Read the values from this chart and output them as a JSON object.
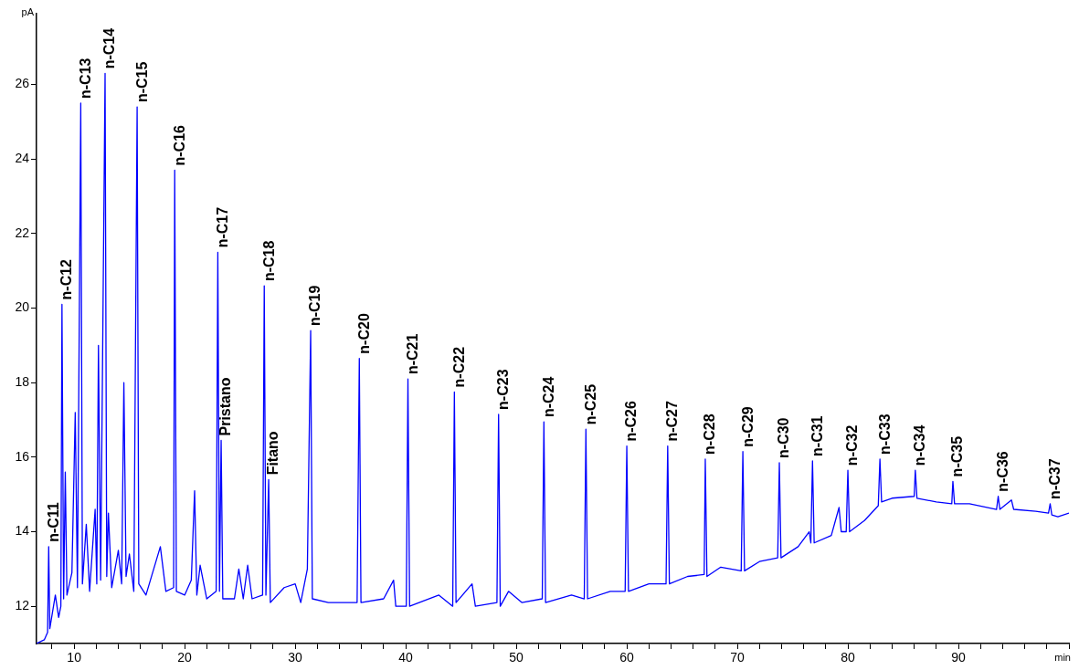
{
  "chart_data": {
    "type": "line",
    "xlabel": "min",
    "ylabel": "pA",
    "xlim": [
      6.6,
      100
    ],
    "ylim": [
      11,
      27.9
    ],
    "xticks": [
      {
        "value": 8,
        "label": null
      },
      10,
      {
        "value": 12,
        "label": null
      },
      {
        "value": 14,
        "label": null
      },
      {
        "value": 16,
        "label": null
      },
      {
        "value": 18,
        "label": null
      },
      20,
      {
        "value": 22,
        "label": null
      },
      {
        "value": 24,
        "label": null
      },
      {
        "value": 26,
        "label": null
      },
      {
        "value": 28,
        "label": null
      },
      30,
      {
        "value": 32,
        "label": null
      },
      {
        "value": 34,
        "label": null
      },
      {
        "value": 36,
        "label": null
      },
      {
        "value": 38,
        "label": null
      },
      40,
      {
        "value": 42,
        "label": null
      },
      {
        "value": 44,
        "label": null
      },
      {
        "value": 46,
        "label": null
      },
      {
        "value": 48,
        "label": null
      },
      50,
      {
        "value": 52,
        "label": null
      },
      {
        "value": 54,
        "label": null
      },
      {
        "value": 56,
        "label": null
      },
      {
        "value": 58,
        "label": null
      },
      60,
      {
        "value": 62,
        "label": null
      },
      {
        "value": 64,
        "label": null
      },
      {
        "value": 66,
        "label": null
      },
      {
        "value": 68,
        "label": null
      },
      70,
      {
        "value": 72,
        "label": null
      },
      {
        "value": 74,
        "label": null
      },
      {
        "value": 76,
        "label": null
      },
      {
        "value": 78,
        "label": null
      },
      80,
      {
        "value": 82,
        "label": null
      },
      {
        "value": 84,
        "label": null
      },
      {
        "value": 86,
        "label": null
      },
      {
        "value": 88,
        "label": null
      },
      90,
      {
        "value": 92,
        "label": null
      },
      {
        "value": 94,
        "label": null
      },
      {
        "value": 96,
        "label": null
      },
      {
        "value": 98,
        "label": null
      },
      {
        "value": 100,
        "label": null
      }
    ],
    "yticks": [
      12,
      14,
      16,
      18,
      20,
      22,
      24,
      26
    ],
    "grid": false,
    "legend": false,
    "marker": "none",
    "line_style": "solid",
    "series": [
      {
        "color": "#0000ff",
        "x": [
          6.6,
          7.3,
          7.6,
          7.7,
          7.8,
          8.3,
          8.6,
          8.8,
          8.9,
          9.05,
          9.2,
          9.35,
          9.8,
          10.1,
          10.3,
          10.6,
          10.75,
          11.1,
          11.4,
          11.9,
          12.05,
          12.2,
          12.4,
          12.8,
          12.95,
          13.1,
          13.4,
          14.0,
          14.3,
          14.5,
          14.7,
          15.0,
          15.4,
          15.7,
          15.85,
          16.5,
          17.5,
          17.8,
          18.3,
          19.0,
          19.1,
          19.25,
          20.0,
          20.6,
          20.9,
          21.1,
          21.4,
          22.0,
          22.85,
          23.0,
          23.15,
          23.3,
          23.45,
          24.5,
          24.9,
          25.3,
          25.7,
          26.1,
          27.05,
          27.2,
          27.35,
          27.6,
          27.75,
          29.0,
          30.0,
          30.5,
          31.1,
          31.4,
          31.55,
          33.0,
          35.6,
          35.8,
          35.95,
          38.0,
          38.9,
          39.1,
          40.05,
          40.2,
          40.35,
          43.0,
          44.25,
          44.4,
          44.55,
          46.0,
          46.3,
          48.25,
          48.4,
          48.55,
          49.3,
          50.5,
          52.35,
          52.5,
          52.65,
          55.0,
          56.15,
          56.3,
          56.45,
          58.5,
          59.85,
          60.0,
          60.15,
          62.0,
          63.55,
          63.7,
          63.85,
          65.5,
          67.0,
          67.1,
          67.25,
          68.5,
          70.35,
          70.5,
          70.65,
          72.0,
          73.65,
          73.8,
          73.95,
          75.5,
          76.5,
          76.65,
          76.8,
          76.95,
          78.5,
          79.2,
          79.4,
          79.85,
          80.0,
          80.15,
          81.5,
          82.75,
          82.9,
          83.05,
          84.0,
          86.0,
          86.1,
          86.25,
          88.0,
          89.4,
          89.5,
          89.65,
          91.0,
          93.45,
          93.6,
          93.75,
          94.8,
          95.0,
          97.0,
          98.15,
          98.3,
          98.45,
          99.0,
          100.0
        ],
        "values": [
          11.0,
          11.1,
          11.3,
          13.6,
          11.4,
          12.3,
          11.7,
          12.0,
          20.1,
          12.2,
          15.6,
          12.3,
          12.9,
          17.2,
          12.5,
          25.5,
          12.6,
          14.2,
          12.4,
          14.6,
          12.6,
          19.0,
          12.7,
          26.3,
          12.8,
          14.5,
          12.5,
          13.5,
          12.6,
          18.0,
          12.8,
          13.4,
          12.4,
          25.4,
          12.6,
          12.3,
          13.3,
          13.6,
          12.4,
          12.5,
          23.7,
          12.4,
          12.3,
          12.7,
          15.1,
          12.3,
          13.1,
          12.2,
          12.4,
          21.5,
          12.4,
          16.45,
          12.2,
          12.2,
          13.0,
          12.2,
          13.1,
          12.2,
          12.3,
          20.6,
          12.3,
          15.4,
          12.1,
          12.5,
          12.6,
          12.1,
          13.0,
          19.4,
          12.2,
          12.1,
          12.1,
          18.65,
          12.1,
          12.2,
          12.7,
          12.0,
          12.0,
          18.1,
          12.0,
          12.3,
          12.0,
          17.75,
          12.1,
          12.6,
          12.0,
          12.1,
          17.15,
          12.0,
          12.4,
          12.1,
          12.2,
          16.95,
          12.1,
          12.3,
          12.2,
          16.75,
          12.2,
          12.4,
          12.4,
          16.3,
          12.4,
          12.6,
          12.6,
          16.3,
          12.6,
          12.8,
          12.85,
          15.95,
          12.8,
          13.05,
          12.95,
          16.15,
          12.95,
          13.2,
          13.3,
          15.85,
          13.3,
          13.6,
          14.0,
          13.7,
          15.9,
          13.7,
          13.9,
          14.65,
          14.0,
          14.0,
          15.65,
          14.0,
          14.3,
          14.7,
          15.95,
          14.8,
          14.9,
          14.95,
          15.65,
          14.9,
          14.8,
          14.75,
          15.35,
          14.75,
          14.75,
          14.6,
          14.95,
          14.6,
          14.85,
          14.6,
          14.55,
          14.5,
          14.75,
          14.45,
          14.4,
          14.5
        ]
      }
    ],
    "annotations": [
      {
        "text": "n-C11",
        "x": 7.7,
        "y": 13.6
      },
      {
        "text": "n-C12",
        "x": 8.9,
        "y": 20.1
      },
      {
        "text": "n-C13",
        "x": 10.6,
        "y": 25.5
      },
      {
        "text": "n-C14",
        "x": 12.8,
        "y": 26.3
      },
      {
        "text": "n-C15",
        "x": 15.7,
        "y": 25.4
      },
      {
        "text": "n-C16",
        "x": 19.1,
        "y": 23.7
      },
      {
        "text": "n-C17",
        "x": 23.0,
        "y": 21.5
      },
      {
        "text": "Pristano",
        "x": 23.3,
        "y": 16.45
      },
      {
        "text": "n-C18",
        "x": 27.2,
        "y": 20.6
      },
      {
        "text": "Fitano",
        "x": 27.6,
        "y": 15.4
      },
      {
        "text": "n-C19",
        "x": 31.4,
        "y": 19.4
      },
      {
        "text": "n-C20",
        "x": 35.8,
        "y": 18.65
      },
      {
        "text": "n-C21",
        "x": 40.2,
        "y": 18.1
      },
      {
        "text": "n-C22",
        "x": 44.4,
        "y": 17.75
      },
      {
        "text": "n-C23",
        "x": 48.4,
        "y": 17.15
      },
      {
        "text": "n-C24",
        "x": 52.5,
        "y": 16.95
      },
      {
        "text": "n-C25",
        "x": 56.3,
        "y": 16.75
      },
      {
        "text": "n-C26",
        "x": 60.0,
        "y": 16.3
      },
      {
        "text": "n-C27",
        "x": 63.7,
        "y": 16.3
      },
      {
        "text": "n-C28",
        "x": 67.1,
        "y": 15.95
      },
      {
        "text": "n-C29",
        "x": 70.5,
        "y": 16.15
      },
      {
        "text": "n-C30",
        "x": 73.8,
        "y": 15.85
      },
      {
        "text": "n-C31",
        "x": 76.8,
        "y": 15.9
      },
      {
        "text": "n-C32",
        "x": 80.0,
        "y": 15.65
      },
      {
        "text": "n-C33",
        "x": 82.9,
        "y": 15.95
      },
      {
        "text": "n-C34",
        "x": 86.1,
        "y": 15.65
      },
      {
        "text": "n-C35",
        "x": 89.5,
        "y": 15.35
      },
      {
        "text": "n-C36",
        "x": 93.6,
        "y": 14.95
      },
      {
        "text": "n-C37",
        "x": 98.3,
        "y": 14.75
      }
    ]
  }
}
